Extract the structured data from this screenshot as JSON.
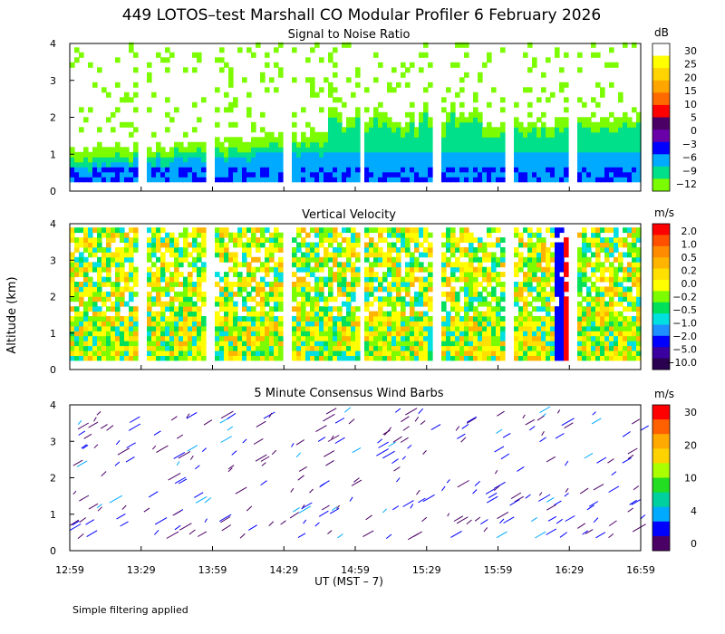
{
  "title": "449 LOTOS–test Marshall CO Modular Profiler  6 February 2026",
  "footer_note": "Simple filtering applied",
  "y_axis_label": "Altitude (km)",
  "x_axis_label": "UT  (MST – 7)",
  "chart_data": [
    {
      "type": "heatmap",
      "panel_title": "Signal to Noise Ratio",
      "colorbar_unit": "dB",
      "colorbar_ticks": [
        "30",
        "25",
        "20",
        "15",
        "10",
        "5",
        "0",
        "−3",
        "−6",
        "−9",
        "−12"
      ],
      "colorbar_colors": [
        "#ffffff",
        "#ffff00",
        "#ffd400",
        "#ffa500",
        "#ff6a00",
        "#ff0000",
        "#4b0066",
        "#6a00a8",
        "#0000ff",
        "#00aaff",
        "#00e08a",
        "#7cfc00"
      ],
      "x_ticks": [
        "12:59",
        "13:29",
        "13:59",
        "14:29",
        "14:59",
        "15:29",
        "15:59",
        "16:29",
        "16:59"
      ],
      "y_ticks": [
        0,
        1,
        2,
        3,
        4
      ],
      "ylim": [
        0,
        4
      ],
      "xlabel": "",
      "ylabel": ""
    },
    {
      "type": "heatmap",
      "panel_title": "Vertical Velocity",
      "colorbar_unit": "m/s",
      "colorbar_ticks": [
        "2.0",
        "1.0",
        "0.5",
        "0.2",
        "0.0",
        "−0.2",
        "−0.5",
        "−1.0",
        "−2.0",
        "−5.0",
        "−10.0"
      ],
      "colorbar_colors": [
        "#ff0000",
        "#ff5000",
        "#ff8c00",
        "#ffb400",
        "#ffe000",
        "#ffff00",
        "#7cfc00",
        "#00e05a",
        "#00e0e0",
        "#1e90ff",
        "#0000ff",
        "#3a00a0",
        "#2a0050"
      ],
      "x_ticks": [
        "12:59",
        "13:29",
        "13:59",
        "14:29",
        "14:59",
        "15:29",
        "15:59",
        "16:29",
        "16:59"
      ],
      "y_ticks": [
        0,
        1,
        2,
        3,
        4
      ],
      "ylim": [
        0,
        4
      ],
      "xlabel": "",
      "ylabel": "Altitude (km)"
    },
    {
      "type": "scatter",
      "panel_title": "5 Minute Consensus Wind Barbs",
      "colorbar_unit": "m/s",
      "colorbar_ticks": [
        "30",
        "20",
        "10",
        "4",
        "0"
      ],
      "colorbar_colors": [
        "#ff0000",
        "#ff6000",
        "#ffaa00",
        "#ffd200",
        "#aaff00",
        "#22dd22",
        "#00d0a0",
        "#00aaff",
        "#0000ff",
        "#4b0066"
      ],
      "x_ticks": [
        "12:59",
        "13:29",
        "13:59",
        "14:29",
        "14:59",
        "15:29",
        "15:59",
        "16:29",
        "16:59"
      ],
      "y_ticks": [
        0,
        1,
        2,
        3,
        4
      ],
      "ylim": [
        0,
        4
      ],
      "xlabel": "UT  (MST – 7)",
      "ylabel": ""
    }
  ]
}
